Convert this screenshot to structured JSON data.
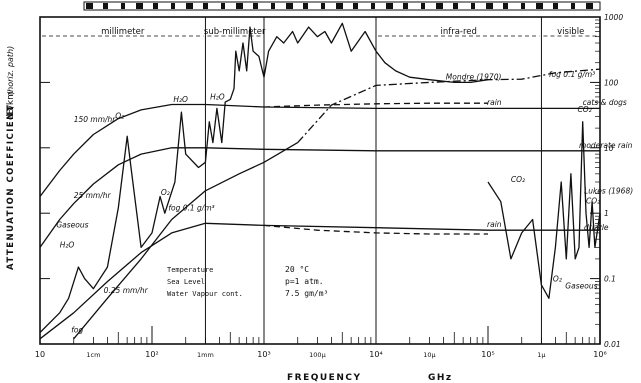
{
  "chart_data": {
    "type": "line",
    "x_scale": "log",
    "y_scale": "log",
    "xlim": [
      10,
      1000000
    ],
    "ylim": [
      0.01,
      1000
    ],
    "xlabel": "FREQUENCY",
    "xunit": "GHz",
    "ylabel": "ATTENUATION COEFFICIENT",
    "yunit": "dB/km",
    "ylabel_note": "(horiz. path)",
    "x_ticks": [
      {
        "v": 10,
        "t": "10"
      },
      {
        "v": 100,
        "t": "10²"
      },
      {
        "v": 1000,
        "t": "10³"
      },
      {
        "v": 10000,
        "t": "10⁴"
      },
      {
        "v": 100000,
        "t": "10⁵"
      },
      {
        "v": 1000000,
        "t": "10⁶"
      }
    ],
    "x_wavelength_labels": [
      {
        "v": 30,
        "t": "1cm"
      },
      {
        "v": 300,
        "t": "1mm"
      },
      {
        "v": 3000,
        "t": "100μ"
      },
      {
        "v": 30000,
        "t": "10μ"
      },
      {
        "v": 300000,
        "t": "1μ"
      }
    ],
    "y_ticks": [
      {
        "v": 1000,
        "t": "1000"
      },
      {
        "v": 100,
        "t": "100"
      },
      {
        "v": 10,
        "t": "10"
      },
      {
        "v": 1,
        "t": "1"
      },
      {
        "v": 0.1,
        "t": "0.1"
      },
      {
        "v": 0.01,
        "t": "0.01"
      }
    ],
    "bands": [
      {
        "from": 10,
        "to": 300,
        "label": "millimeter"
      },
      {
        "from": 300,
        "to": 1000,
        "label": "sub-millimeter"
      },
      {
        "from": 10000,
        "to": 300000,
        "label": "infra-red"
      },
      {
        "from": 300000,
        "to": 1000000,
        "label": "visible"
      }
    ],
    "band_boundaries": [
      300,
      1000,
      10000,
      300000
    ],
    "series": [
      {
        "name": "150 mm/hr",
        "dash": "solid",
        "points": [
          [
            10,
            1.8
          ],
          [
            15,
            4.5
          ],
          [
            20,
            8
          ],
          [
            30,
            16
          ],
          [
            50,
            28
          ],
          [
            80,
            38
          ],
          [
            150,
            46
          ],
          [
            300,
            46
          ],
          [
            1000,
            42
          ],
          [
            10000,
            40
          ],
          [
            100000,
            40
          ],
          [
            1000000,
            40
          ]
        ]
      },
      {
        "name": "25 mm/hr",
        "dash": "solid",
        "points": [
          [
            10,
            0.3
          ],
          [
            15,
            0.8
          ],
          [
            20,
            1.4
          ],
          [
            30,
            2.8
          ],
          [
            50,
            5.5
          ],
          [
            80,
            8
          ],
          [
            150,
            10
          ],
          [
            300,
            10
          ],
          [
            1000,
            9.5
          ],
          [
            10000,
            9
          ],
          [
            100000,
            9
          ],
          [
            1000000,
            9
          ]
        ]
      },
      {
        "name": "0.25 mm/hr",
        "dash": "solid",
        "points": [
          [
            10,
            0.012
          ],
          [
            20,
            0.03
          ],
          [
            40,
            0.09
          ],
          [
            80,
            0.25
          ],
          [
            150,
            0.5
          ],
          [
            300,
            0.7
          ],
          [
            1000,
            0.65
          ],
          [
            10000,
            0.6
          ],
          [
            100000,
            0.55
          ],
          [
            1000000,
            0.55
          ]
        ]
      },
      {
        "name": "fog 0.1 g/m³",
        "dash": "solid",
        "points": [
          [
            20,
            0.012
          ],
          [
            40,
            0.05
          ],
          [
            80,
            0.2
          ],
          [
            150,
            0.8
          ],
          [
            300,
            2.2
          ],
          [
            600,
            4
          ],
          [
            1000,
            6
          ],
          [
            2000,
            12
          ]
        ]
      },
      {
        "name": "fog 0.1 g/m³ (continued)",
        "dash": "dashdot",
        "points": [
          [
            2000,
            12
          ],
          [
            4000,
            45
          ],
          [
            10000,
            90
          ],
          [
            30000,
            100
          ],
          [
            100000,
            110
          ],
          [
            200000,
            112
          ],
          [
            400000,
            140
          ],
          [
            1000000,
            160
          ]
        ]
      },
      {
        "name": "rain (upper)",
        "dash": "dashed",
        "points": [
          [
            1000,
            42
          ],
          [
            3000,
            45
          ],
          [
            10000,
            47
          ],
          [
            30000,
            48
          ],
          [
            100000,
            48
          ]
        ]
      },
      {
        "name": "rain (lower)",
        "dash": "dashed",
        "points": [
          [
            1000,
            0.65
          ],
          [
            3000,
            0.55
          ],
          [
            10000,
            0.5
          ],
          [
            30000,
            0.48
          ],
          [
            100000,
            0.48
          ]
        ]
      },
      {
        "name": "Gaseous",
        "dash": "solid",
        "points": [
          [
            10,
            0.015
          ],
          [
            15,
            0.03
          ],
          [
            18,
            0.05
          ],
          [
            22,
            0.15
          ],
          [
            25,
            0.1
          ],
          [
            30,
            0.07
          ],
          [
            40,
            0.15
          ],
          [
            50,
            1.2
          ],
          [
            60,
            15
          ],
          [
            65,
            5
          ],
          [
            80,
            0.3
          ],
          [
            100,
            0.5
          ],
          [
            118,
            1.8
          ],
          [
            130,
            1
          ],
          [
            160,
            3
          ],
          [
            183,
            35
          ],
          [
            200,
            8
          ],
          [
            260,
            5
          ],
          [
            300,
            6
          ],
          [
            325,
            25
          ],
          [
            350,
            12
          ],
          [
            380,
            40
          ],
          [
            420,
            12
          ],
          [
            450,
            50
          ],
          [
            500,
            55
          ],
          [
            540,
            80
          ],
          [
            560,
            300
          ],
          [
            600,
            150
          ],
          [
            650,
            400
          ],
          [
            700,
            150
          ],
          [
            750,
            700
          ],
          [
            800,
            300
          ],
          [
            900,
            250
          ],
          [
            1000,
            120
          ],
          [
            1100,
            300
          ],
          [
            1300,
            500
          ],
          [
            1500,
            400
          ],
          [
            1800,
            600
          ],
          [
            2000,
            400
          ],
          [
            2500,
            700
          ],
          [
            3000,
            500
          ],
          [
            3500,
            600
          ],
          [
            4000,
            400
          ],
          [
            5000,
            800
          ],
          [
            6000,
            300
          ],
          [
            8000,
            600
          ],
          [
            10000,
            300
          ],
          [
            12000,
            200
          ],
          [
            15000,
            150
          ],
          [
            20000,
            120
          ],
          [
            30000,
            110
          ],
          [
            50000,
            100
          ],
          [
            70000,
            100
          ],
          [
            100000,
            110
          ]
        ]
      },
      {
        "name": "Gaseous (infra-red)",
        "dash": "solid",
        "points": [
          [
            100000,
            3
          ],
          [
            130000,
            1.5
          ],
          [
            160000,
            0.2
          ],
          [
            200000,
            0.5
          ],
          [
            250000,
            0.8
          ],
          [
            300000,
            0.08
          ],
          [
            350000,
            0.05
          ],
          [
            400000,
            0.3
          ],
          [
            450000,
            3
          ],
          [
            500000,
            0.2
          ],
          [
            550000,
            4
          ],
          [
            600000,
            0.2
          ],
          [
            650000,
            0.3
          ],
          [
            700000,
            25
          ],
          [
            750000,
            1
          ],
          [
            800000,
            0.3
          ],
          [
            850000,
            1.5
          ],
          [
            900000,
            0.3
          ],
          [
            1000000,
            1
          ],
          [
            1000000,
            0.01
          ]
        ]
      }
    ],
    "annotations": [
      {
        "x": 42000.0,
        "y": 110,
        "text": "Mondre (1970)"
      },
      {
        "x": 98000.0,
        "y": 45,
        "text": "rain"
      },
      {
        "x": 98000.0,
        "y": 0.62,
        "text": "rain"
      },
      {
        "x": 350000.0,
        "y": 120,
        "text": "fog 0.1 g/m³"
      },
      {
        "x": 700000.0,
        "y": 45,
        "text": "cats & dogs"
      },
      {
        "x": 650000.0,
        "y": 10,
        "text": "moderate rain"
      },
      {
        "x": 720000.0,
        "y": 0.55,
        "text": "drizzle"
      },
      {
        "x": 630000.0,
        "y": 35,
        "text": "CO₂"
      },
      {
        "x": 160000.0,
        "y": 3,
        "text": "CO₂"
      },
      {
        "x": 750000.0,
        "y": 1.4,
        "text": "CO₂"
      },
      {
        "x": 380000.0,
        "y": 0.09,
        "text": "O₂"
      },
      {
        "x": 490000.0,
        "y": 0.07,
        "text": "Gaseous"
      },
      {
        "x": 720000.0,
        "y": 2.0,
        "text": "Lukes (1968)"
      },
      {
        "x": 47,
        "y": 28,
        "text": "O₂"
      },
      {
        "x": 155,
        "y": 50,
        "text": "H₂O"
      },
      {
        "x": 330,
        "y": 55,
        "text": "H₂O"
      },
      {
        "x": 15,
        "y": 0.3,
        "text": "H₂O"
      },
      {
        "x": 14,
        "y": 0.6,
        "text": "Gaseous"
      },
      {
        "x": 120,
        "y": 1.9,
        "text": "O₂"
      },
      {
        "x": 140,
        "y": 1.1,
        "text": "fog 0.1 g/m³"
      },
      {
        "x": 20,
        "y": 25,
        "text": "150 mm/hr"
      },
      {
        "x": 20,
        "y": 1.7,
        "text": "25 mm/hr"
      },
      {
        "x": 37,
        "y": 0.06,
        "text": "0.25 mm/hr"
      },
      {
        "x": 19,
        "y": 0.015,
        "text": "fog"
      }
    ],
    "conditions": [
      {
        "label": "Temperature",
        "value": "20 °C"
      },
      {
        "label": "Sea Level",
        "value": "p=1 atm."
      },
      {
        "label": "Water Vapour cont.",
        "value": "7.5 gm/m³"
      }
    ]
  }
}
